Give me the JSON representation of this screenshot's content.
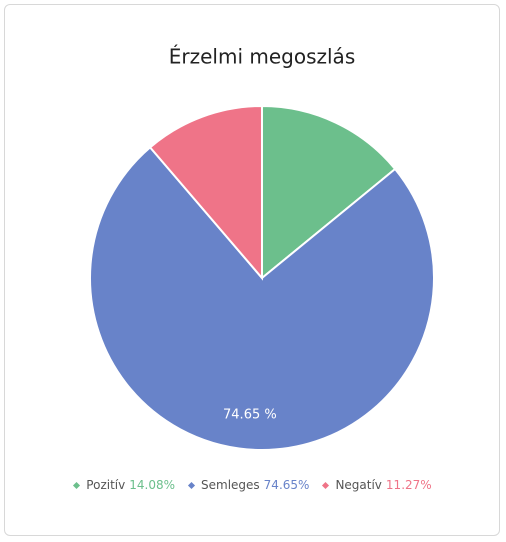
{
  "chart_data": {
    "type": "pie",
    "title": "Érzelmi megoszlás",
    "categories": [
      "Pozitív",
      "Semleges",
      "Negatív"
    ],
    "values": [
      14.08,
      74.65,
      11.27
    ],
    "value_labels": [
      "14.08%",
      "74.65%",
      "11.27%"
    ],
    "data_labels": [
      null,
      "74.65 %",
      null
    ],
    "colors": [
      "#6cbf8c",
      "#6883c9",
      "#ef7488"
    ],
    "legend": "bottom"
  }
}
